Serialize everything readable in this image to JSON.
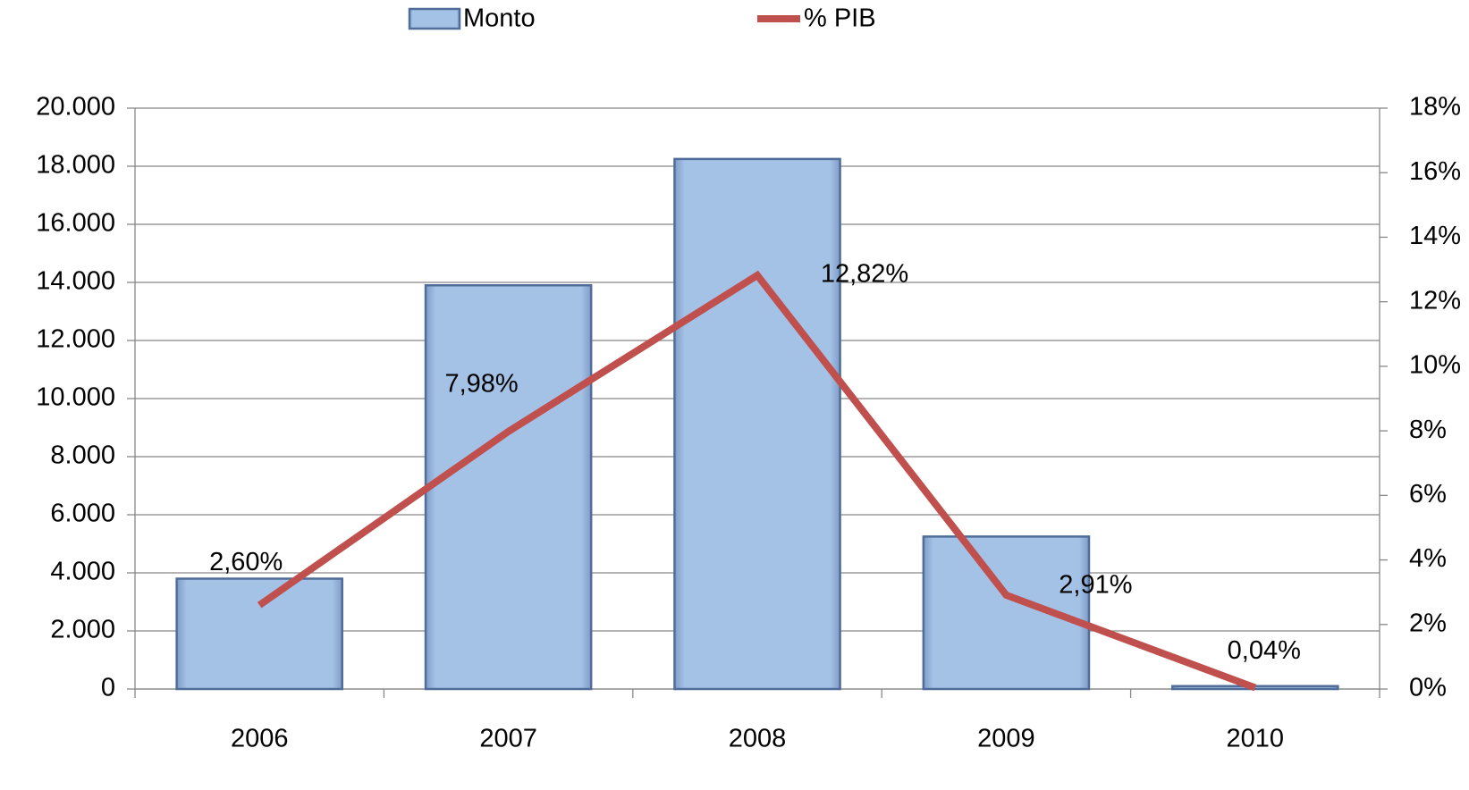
{
  "chart_data": {
    "type": "bar",
    "categories": [
      "2006",
      "2007",
      "2008",
      "2009",
      "2010"
    ],
    "series": [
      {
        "name": "Monto",
        "color": "#a4c2e6",
        "values": [
          3800,
          13900,
          18250,
          5250,
          100
        ]
      },
      {
        "name": "% PIB",
        "color": "#c0504d",
        "type": "line",
        "axis": "y2",
        "values": [
          2.6,
          7.98,
          12.82,
          2.91,
          0.04
        ],
        "value_labels": [
          "2,60%",
          "7,98%",
          "12,82%",
          "2,91%",
          "0,04%"
        ]
      }
    ],
    "ylim": [
      0,
      20000
    ],
    "yticks": [
      0,
      {
        "value": 2000,
        "label": "2.000"
      },
      {
        "value": 4000,
        "label": "4.000"
      },
      {
        "value": 6000,
        "label": "6.000"
      },
      {
        "value": 8000,
        "label": "8.000"
      },
      {
        "value": 10000,
        "label": "10.000"
      },
      {
        "value": 12000,
        "label": "12.000"
      },
      {
        "value": 14000,
        "label": "14.000"
      },
      {
        "value": 16000,
        "label": "16.000"
      },
      {
        "value": 18000,
        "label": "18.000"
      },
      {
        "value": 20000,
        "label": "20.000"
      }
    ],
    "y2lim": [
      0,
      18
    ],
    "y2ticks": [
      {
        "value": 0,
        "label": "0%"
      },
      {
        "value": 2,
        "label": "2%"
      },
      {
        "value": 4,
        "label": "4%"
      },
      {
        "value": 6,
        "label": "6%"
      },
      {
        "value": 8,
        "label": "8%"
      },
      {
        "value": 10,
        "label": "10%"
      },
      {
        "value": 12,
        "label": "12%"
      },
      {
        "value": 14,
        "label": "14%"
      },
      {
        "value": 16,
        "label": "16%"
      },
      {
        "value": 18,
        "label": "18%"
      }
    ],
    "grid": true,
    "legend": "top"
  }
}
